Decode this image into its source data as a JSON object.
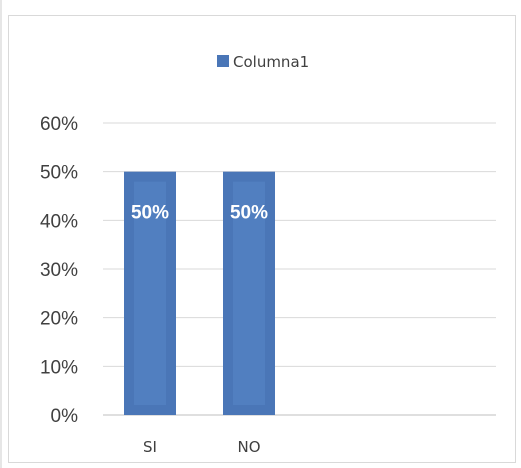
{
  "chart_data": {
    "type": "bar",
    "categories": [
      "SI",
      "NO"
    ],
    "series": [
      {
        "name": "Columna1",
        "values": [
          0.5,
          0.5
        ],
        "color": "#4a76b7"
      }
    ],
    "data_labels": [
      "50%",
      "50%"
    ],
    "y_ticks": [
      "0%",
      "10%",
      "20%",
      "30%",
      "40%",
      "50%",
      "60%"
    ],
    "ylim": [
      0,
      0.6
    ],
    "grid": true,
    "legend": "top-center"
  }
}
